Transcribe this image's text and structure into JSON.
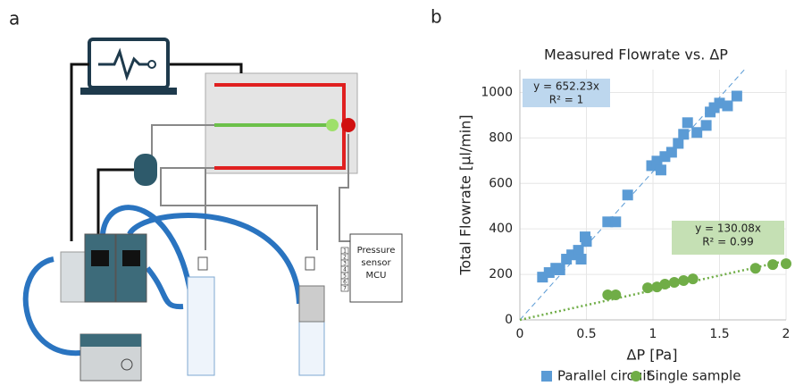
{
  "panel_labels": [
    "a",
    "b"
  ],
  "diagram": {
    "mcu_label": [
      "Pressure",
      "sensor",
      "MCU"
    ],
    "pins": [
      "1",
      "2",
      "3",
      "4",
      "5",
      "6",
      "7"
    ]
  },
  "chart_data": {
    "type": "scatter",
    "title": "Measured Flowrate vs. ΔP",
    "x_label": "ΔP [Pa]",
    "y_label": "Total Flowrate [µl/min]",
    "xlim": [
      0,
      2
    ],
    "ylim": [
      0,
      1100
    ],
    "xticks": [
      0,
      0.5,
      1,
      1.5,
      2
    ],
    "yticks": [
      0,
      200,
      400,
      600,
      800,
      1000
    ],
    "grid": true,
    "series": [
      {
        "name": "Parallel circuit",
        "color": "#5b9bd5",
        "marker": "square",
        "trend_slope": 652.23,
        "trend_style": "dashed",
        "fit_label": [
          "y = 652.23x",
          "R² = 1"
        ],
        "fit_box_color": "#bdd7ee",
        "x": [
          0.17,
          0.22,
          0.27,
          0.3,
          0.35,
          0.39,
          0.44,
          0.46,
          0.49,
          0.5,
          0.66,
          0.72,
          0.81,
          0.99,
          1.03,
          1.06,
          1.09,
          1.14,
          1.19,
          1.23,
          1.26,
          1.33,
          1.4,
          1.43,
          1.46,
          1.5,
          1.56,
          1.63
        ],
        "values": [
          188,
          208,
          227,
          220,
          267,
          286,
          306,
          267,
          365,
          345,
          431,
          431,
          549,
          678,
          698,
          659,
          718,
          737,
          776,
          816,
          867,
          824,
          855,
          914,
          933,
          953,
          941,
          984
        ]
      },
      {
        "name": "Single sample",
        "color": "#70ad47",
        "marker": "circle",
        "trend_slope": 130.08,
        "trend_style": "dotted",
        "fit_label": [
          "y = 130.08x",
          "R² = 0.99"
        ],
        "fit_box_color": "#c5e0b4",
        "x": [
          0.66,
          0.72,
          0.96,
          1.03,
          1.09,
          1.16,
          1.23,
          1.3,
          1.77,
          1.9,
          2.0
        ],
        "values": [
          110,
          110,
          141,
          145,
          157,
          165,
          173,
          180,
          227,
          243,
          247
        ]
      }
    ]
  }
}
